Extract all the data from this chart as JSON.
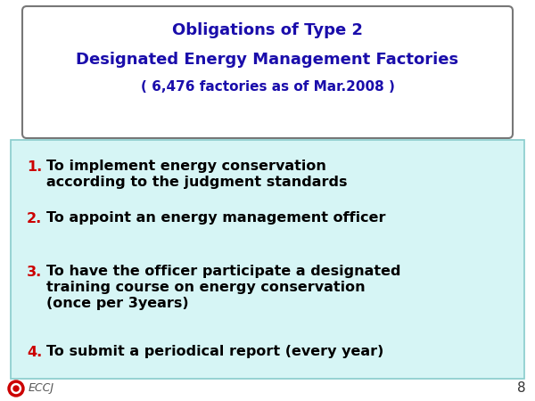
{
  "title_line1": "Obligations of Type 2",
  "title_line2": "Designated Energy Management Factories",
  "title_line3": "( 6,476 factories as of Mar.2008 )",
  "title_color": "#1a0dab",
  "title_fontsize1": 13,
  "title_fontsize2": 13,
  "title_fontsize3": 11,
  "bg_color": "#ffffff",
  "list_bg_color": "#d6f5f5",
  "list_border_color": "#88cccc",
  "number_color": "#cc0000",
  "text_color": "#000000",
  "items": [
    {
      "number": "1.",
      "lines": [
        "To implement energy conservation",
        "according to the judgment standards"
      ]
    },
    {
      "number": "2.",
      "lines": [
        "To appoint an energy management officer"
      ]
    },
    {
      "number": "3.",
      "lines": [
        "To have the officer participate a designated",
        "training course on energy conservation",
        "(once per 3years)"
      ]
    },
    {
      "number": "4.",
      "lines": [
        "To submit a periodical report (every year)"
      ]
    }
  ],
  "item_fontsize": 11.5,
  "number_fontsize": 11.5,
  "footer_text": "ECCJ",
  "footer_color": "#555555",
  "page_number": "8",
  "title_box_edge": "#777777",
  "title_box_facecolor": "#ffffff"
}
